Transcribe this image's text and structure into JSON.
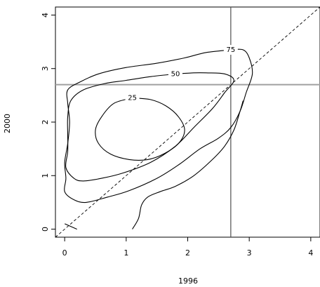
{
  "chart_data": {
    "type": "contour",
    "title": "",
    "xlabel": "1996",
    "ylabel": "2000",
    "xlim": [
      -0.15,
      4.15
    ],
    "ylim": [
      -0.15,
      4.15
    ],
    "x_ticks": [
      0,
      1,
      2,
      3,
      4
    ],
    "y_ticks": [
      0,
      1,
      2,
      3,
      4
    ],
    "x_tick_labels": [
      "0",
      "1",
      "2",
      "3",
      "4"
    ],
    "y_tick_labels": [
      "0",
      "1",
      "2",
      "3",
      "4"
    ],
    "grid": false,
    "reference_lines": {
      "diagonal": {
        "style": "dashed",
        "equation": "y = x"
      },
      "vertical": {
        "x": 2.7,
        "color": "#505050"
      },
      "horizontal": {
        "y": 2.7,
        "color": "#a0a0a0"
      }
    },
    "contours": [
      {
        "level": "25",
        "label_at": [
          1.1,
          2.45
        ],
        "points": [
          [
            1.1,
            2.45
          ],
          [
            0.8,
            2.35
          ],
          [
            0.6,
            2.1
          ],
          [
            0.5,
            1.85
          ],
          [
            0.55,
            1.6
          ],
          [
            0.75,
            1.4
          ],
          [
            1.05,
            1.3
          ],
          [
            1.35,
            1.3
          ],
          [
            1.6,
            1.4
          ],
          [
            1.85,
            1.6
          ],
          [
            1.95,
            1.85
          ],
          [
            1.85,
            2.1
          ],
          [
            1.65,
            2.3
          ],
          [
            1.4,
            2.42
          ],
          [
            1.1,
            2.45
          ]
        ]
      },
      {
        "level": "50",
        "label_at": [
          1.8,
          2.9
        ],
        "points": [
          [
            1.8,
            2.9
          ],
          [
            1.4,
            2.85
          ],
          [
            1.0,
            2.78
          ],
          [
            0.65,
            2.72
          ],
          [
            0.3,
            2.6
          ],
          [
            0.1,
            2.4
          ],
          [
            0.05,
            2.1
          ],
          [
            0.05,
            1.75
          ],
          [
            0.05,
            1.45
          ],
          [
            0.02,
            1.15
          ],
          [
            0.15,
            0.95
          ],
          [
            0.3,
            0.9
          ],
          [
            0.6,
            0.95
          ],
          [
            0.95,
            1.05
          ],
          [
            1.4,
            1.25
          ],
          [
            1.8,
            1.55
          ],
          [
            2.1,
            1.9
          ],
          [
            2.4,
            2.25
          ],
          [
            2.6,
            2.55
          ],
          [
            2.75,
            2.78
          ],
          [
            2.6,
            2.9
          ],
          [
            2.3,
            2.92
          ],
          [
            2.1,
            2.92
          ],
          [
            1.8,
            2.9
          ]
        ]
      },
      {
        "level": "75",
        "label_at": [
          2.7,
          3.35
        ],
        "points": [
          [
            2.7,
            3.35
          ],
          [
            2.3,
            3.3
          ],
          [
            1.95,
            3.2
          ],
          [
            1.5,
            3.1
          ],
          [
            1.0,
            3.02
          ],
          [
            0.55,
            2.9
          ],
          [
            0.25,
            2.75
          ],
          [
            0.05,
            2.6
          ],
          [
            0.05,
            2.35
          ],
          [
            0.08,
            2.0
          ],
          [
            0.05,
            1.6
          ],
          [
            0.0,
            1.25
          ],
          [
            0.02,
            0.95
          ],
          [
            0.0,
            0.7
          ],
          [
            0.15,
            0.55
          ],
          [
            0.35,
            0.5
          ],
          [
            0.7,
            0.6
          ],
          [
            1.05,
            0.72
          ],
          [
            1.5,
            0.95
          ],
          [
            1.85,
            1.2
          ],
          [
            2.2,
            1.5
          ],
          [
            2.5,
            1.7
          ],
          [
            2.7,
            1.9
          ],
          [
            2.85,
            2.2
          ],
          [
            2.95,
            2.55
          ],
          [
            3.05,
            2.9
          ],
          [
            3.0,
            3.2
          ],
          [
            2.9,
            3.35
          ],
          [
            2.7,
            3.35
          ]
        ]
      },
      {
        "level": "75",
        "label_at": null,
        "points": [
          [
            1.1,
            0.0
          ],
          [
            1.2,
            0.2
          ],
          [
            1.25,
            0.45
          ],
          [
            1.35,
            0.6
          ],
          [
            1.55,
            0.7
          ],
          [
            1.8,
            0.8
          ],
          [
            2.1,
            1.0
          ],
          [
            2.4,
            1.3
          ],
          [
            2.6,
            1.55
          ],
          [
            2.75,
            1.85
          ],
          [
            2.85,
            2.2
          ],
          [
            2.9,
            2.4
          ]
        ]
      },
      {
        "level": "",
        "label_at": null,
        "points": [
          [
            0.0,
            0.1
          ],
          [
            0.2,
            0.0
          ]
        ]
      }
    ]
  }
}
